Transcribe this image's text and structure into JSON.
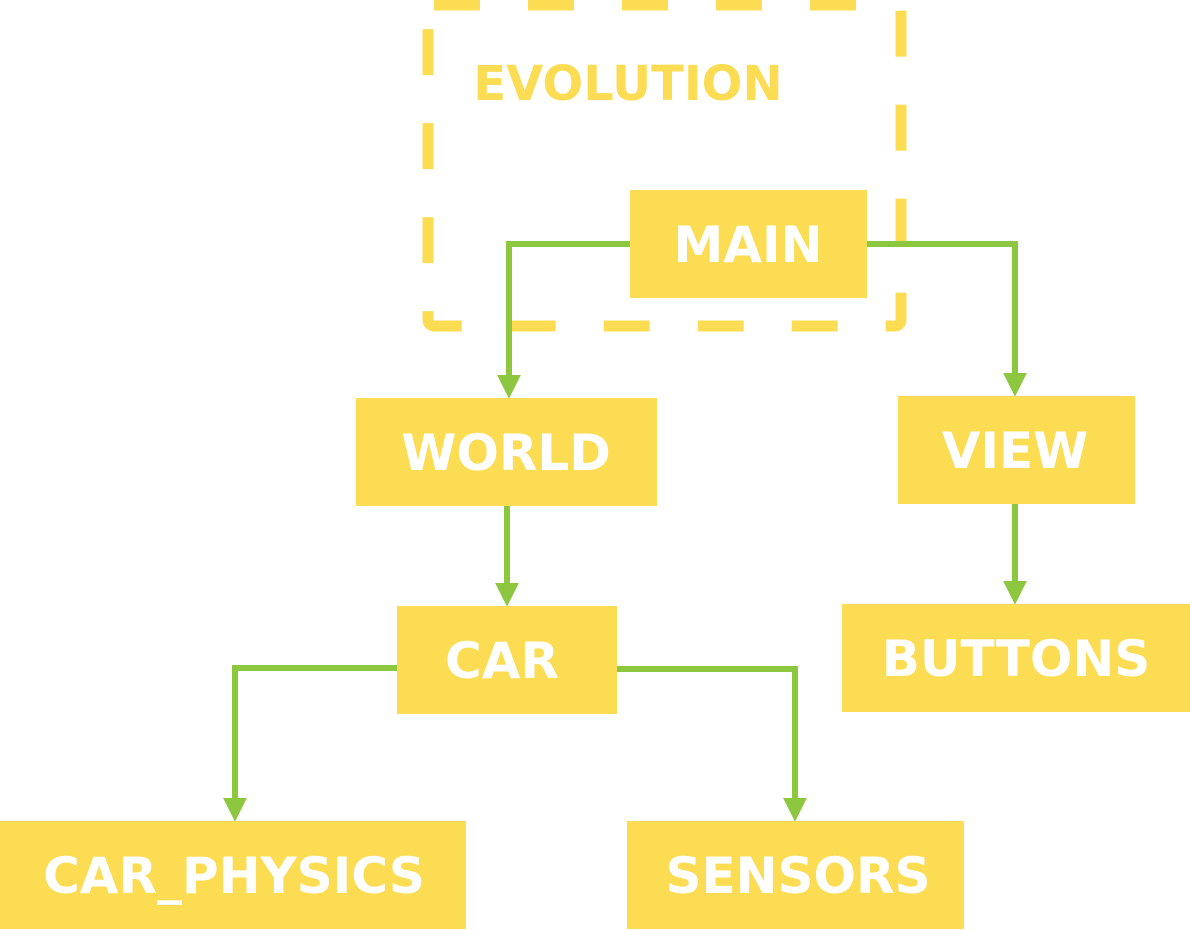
{
  "colors": {
    "node_fill": "#FCDC52",
    "node_text": "#FFFFFF",
    "edge": "#8DC63F",
    "group_border": "#FCDC52",
    "group_label": "#FCDC52"
  },
  "group": {
    "label": "EVOLUTION"
  },
  "nodes": {
    "main": {
      "label": "MAIN"
    },
    "world": {
      "label": "WORLD"
    },
    "view": {
      "label": "VIEW"
    },
    "car": {
      "label": "CAR"
    },
    "buttons": {
      "label": "BUTTONS"
    },
    "car_physics": {
      "label": "CAR_PHYSICS"
    },
    "sensors": {
      "label": "SENSORS"
    }
  },
  "edges": [
    {
      "from": "main",
      "to": "world"
    },
    {
      "from": "main",
      "to": "view"
    },
    {
      "from": "world",
      "to": "car"
    },
    {
      "from": "view",
      "to": "buttons"
    },
    {
      "from": "car",
      "to": "car_physics"
    },
    {
      "from": "car",
      "to": "sensors"
    }
  ]
}
